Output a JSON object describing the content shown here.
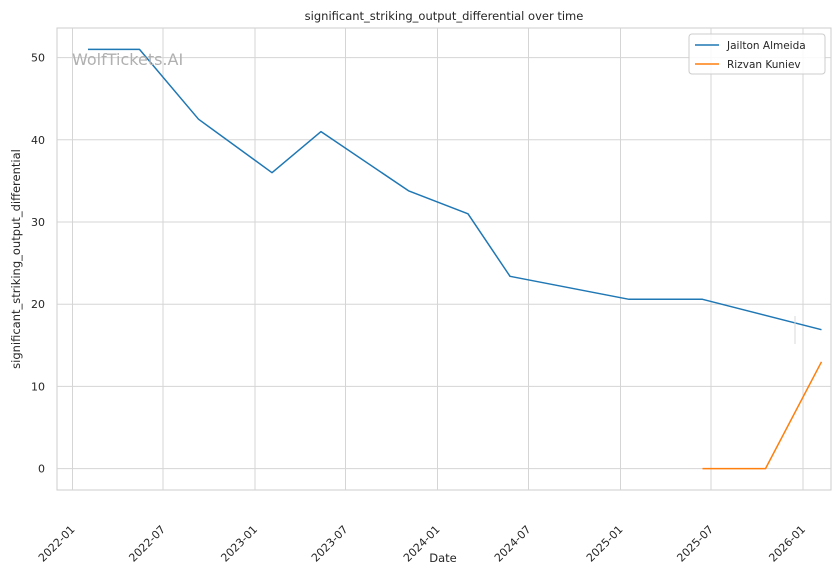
{
  "watermark": "WolfTickets.AI",
  "chart_data": {
    "type": "line",
    "title": "significant_striking_output_differential over time",
    "xlabel": "Date",
    "ylabel": "significant_striking_output_differential",
    "x_ticks": [
      "2022-01",
      "2022-07",
      "2023-01",
      "2023-07",
      "2024-01",
      "2024-07",
      "2025-01",
      "2025-07",
      "2026-01"
    ],
    "y_ticks": [
      0,
      10,
      20,
      30,
      40,
      50
    ],
    "xlim": [
      "2021-12-01",
      "2026-02-26"
    ],
    "ylim": [
      -2.6,
      53.6
    ],
    "grid": true,
    "legend_position": "top-right",
    "series": [
      {
        "name": "Jailton Almeida",
        "color": "#1f77b4",
        "points": [
          {
            "x": "2022-02-01",
            "y": 51.0
          },
          {
            "x": "2022-05-15",
            "y": 51.0
          },
          {
            "x": "2022-09-10",
            "y": 42.5
          },
          {
            "x": "2023-02-04",
            "y": 36.0
          },
          {
            "x": "2023-05-13",
            "y": 41.0
          },
          {
            "x": "2023-11-04",
            "y": 33.8
          },
          {
            "x": "2024-03-02",
            "y": 31.0
          },
          {
            "x": "2024-05-25",
            "y": 23.4
          },
          {
            "x": "2025-01-18",
            "y": 20.6
          },
          {
            "x": "2025-06-14",
            "y": 20.6
          },
          {
            "x": "2026-02-07",
            "y": 16.9
          }
        ]
      },
      {
        "name": "Rizvan Kuniev",
        "color": "#ff7f0e",
        "points": [
          {
            "x": "2025-06-14",
            "y": 0.0
          },
          {
            "x": "2025-10-18",
            "y": 0.0
          },
          {
            "x": "2026-02-07",
            "y": 13.0
          }
        ]
      }
    ]
  }
}
